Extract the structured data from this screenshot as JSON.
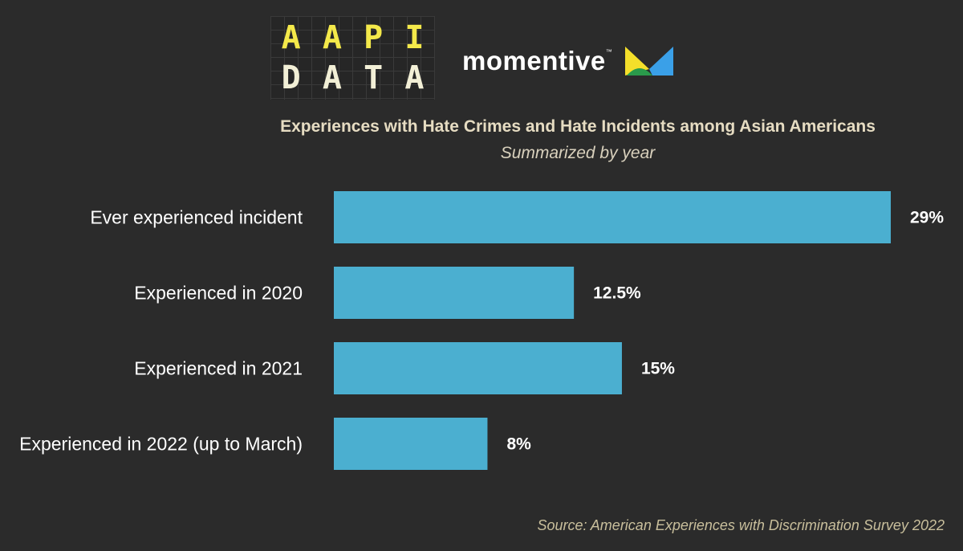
{
  "logos": {
    "aapi": {
      "row1": [
        "A",
        "A",
        "P",
        "I"
      ],
      "row2": [
        "D",
        "A",
        "T",
        "A"
      ]
    },
    "momentive": {
      "word": "momentive",
      "tm": "™"
    }
  },
  "colors": {
    "background": "#2b2b2b",
    "bar": "#4bafd0",
    "title": "#e6dcc2",
    "source": "#c9bf9c"
  },
  "chart_data": {
    "type": "bar",
    "orientation": "horizontal",
    "title": "Experiences with Hate Crimes and Hate Incidents among Asian Americans",
    "subtitle": "Summarized by year",
    "categories": [
      "Ever experienced incident",
      "Experienced in 2020",
      "Experienced in 2021",
      "Experienced in 2022 (up to March)"
    ],
    "values": [
      29,
      12.5,
      15,
      8
    ],
    "value_labels": [
      "29%",
      "12.5%",
      "15%",
      "8%"
    ],
    "xlabel": "",
    "ylabel": "",
    "xlim": [
      0,
      29
    ],
    "grid": false,
    "legend": "none"
  },
  "source": "Source: American Experiences with Discrimination Survey 2022"
}
